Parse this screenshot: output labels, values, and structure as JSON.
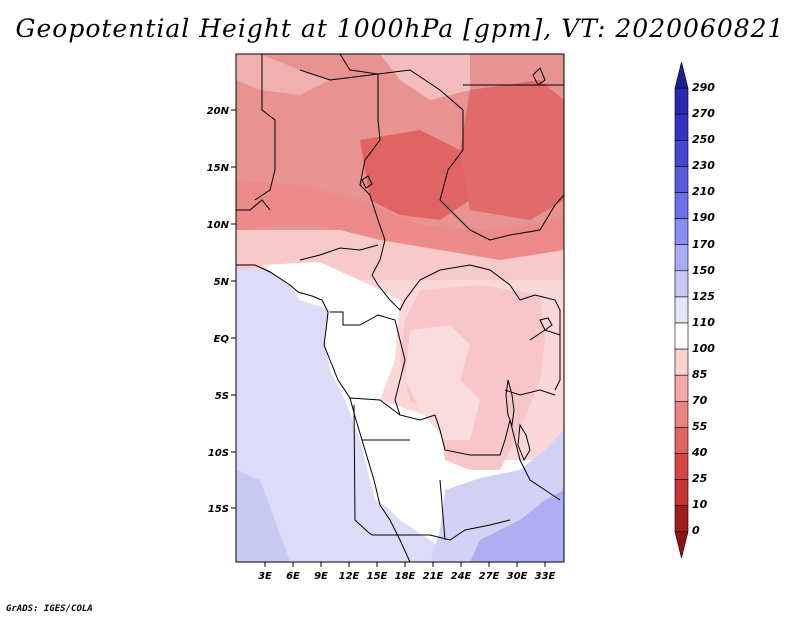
{
  "title": "Geopotential Height at 1000hPa [gpm], VT: 2020060821",
  "credit": "GrADS: IGES/COLA",
  "map": {
    "lat_labels": [
      "20N",
      "15N",
      "10N",
      "5N",
      "EQ",
      "5S",
      "10S",
      "15S"
    ],
    "lon_labels": [
      "3E",
      "6E",
      "9E",
      "12E",
      "15E",
      "18E",
      "21E",
      "24E",
      "27E",
      "30E",
      "33E"
    ]
  },
  "colorbar": {
    "labels": [
      "290",
      "270",
      "250",
      "230",
      "210",
      "190",
      "170",
      "150",
      "125",
      "110",
      "100",
      "85",
      "70",
      "55",
      "40",
      "25",
      "10",
      "0"
    ],
    "colors": [
      "#1e1e96",
      "#2828b4",
      "#3232c8",
      "#4646d2",
      "#5a5ae1",
      "#6e6eeb",
      "#8c8cf5",
      "#aaaaf5",
      "#c8c8f5",
      "#e6e6fa",
      "#ffffff",
      "#fad2d2",
      "#f5aaaa",
      "#eb8282",
      "#e16464",
      "#d74646",
      "#c83232",
      "#a01e1e",
      "#8c1414"
    ]
  }
}
